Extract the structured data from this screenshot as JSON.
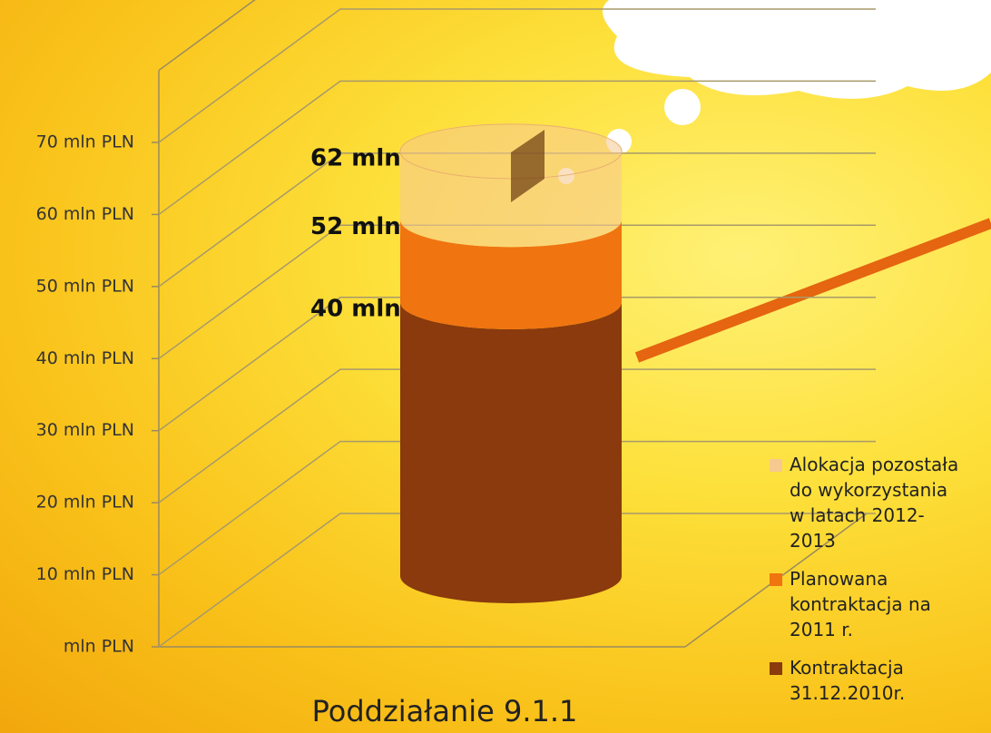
{
  "chart_data": {
    "type": "stacked-cylinder",
    "title": "Poddziałanie 9.1.1",
    "categories": [
      "Poddziałanie 9.1.1"
    ],
    "series": [
      {
        "name": "Kontraktacja 31.12.2010r.",
        "color": "#8a3a0c",
        "values": [
          40
        ]
      },
      {
        "name": "Planowana kontraktacja na 2011 r.",
        "color": "#f07410",
        "values": [
          12
        ]
      },
      {
        "name": "Alokacja pozostała do wykorzystania w latach 2012-2013",
        "color": "#f6c98f",
        "values": [
          10
        ]
      }
    ],
    "totals": [
      {
        "value": 40,
        "label": "40 mln"
      },
      {
        "value": 52,
        "label": "52 mln"
      },
      {
        "value": 62,
        "label": "62 mln"
      }
    ],
    "ylim": [
      0,
      80
    ],
    "yticks": [
      {
        "value": 0,
        "label": "mln PLN"
      },
      {
        "value": 10,
        "label": "10 mln PLN"
      },
      {
        "value": 20,
        "label": "20 mln PLN"
      },
      {
        "value": 30,
        "label": "30 mln PLN"
      },
      {
        "value": 40,
        "label": "40 mln PLN"
      },
      {
        "value": 50,
        "label": "50 mln PLN"
      },
      {
        "value": 60,
        "label": "60 mln PLN"
      },
      {
        "value": 70,
        "label": "70 mln PLN"
      }
    ],
    "grid": true,
    "legend": "right"
  }
}
